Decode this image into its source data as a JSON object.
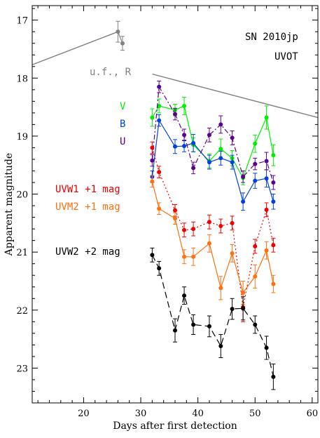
{
  "chart_data": {
    "type": "scatter",
    "title": "",
    "xlabel": "Days after first detection",
    "ylabel": "Apparent magnitude",
    "xlim": [
      11,
      61
    ],
    "ylim": [
      23.6,
      16.75
    ],
    "y_inverted": true,
    "grid": false,
    "x_ticks": [
      20,
      30,
      40,
      50,
      60
    ],
    "y_ticks": [
      17,
      18,
      19,
      20,
      21,
      22,
      23
    ],
    "annotations": [
      "SN 2010jp",
      "UVOT"
    ],
    "series": [
      {
        "name": "u.f., R",
        "color": "#808080",
        "line": "solid",
        "x": [
          26.0,
          26.8
        ],
        "y": [
          17.2,
          17.4
        ],
        "err": [
          0.18,
          0.12
        ],
        "fit_lines": [
          {
            "x": [
              11,
              26.0
            ],
            "y": [
              17.77,
              17.2
            ]
          },
          {
            "x": [
              32.0,
              61
            ],
            "y": [
              17.93,
              18.68
            ]
          }
        ]
      },
      {
        "name": "V",
        "color": "#00ee00",
        "line": "solid",
        "x": [
          32.0,
          33.2,
          36.0,
          37.6,
          39.2,
          42.0,
          44.0,
          46.0,
          47.9,
          50.0,
          52.0,
          53.2
        ],
        "y": [
          18.68,
          18.48,
          18.55,
          18.48,
          19.15,
          19.43,
          19.22,
          19.38,
          19.72,
          19.13,
          18.68,
          19.33
        ],
        "err": [
          0.15,
          0.12,
          0.1,
          0.15,
          0.12,
          0.12,
          0.17,
          0.13,
          0.12,
          0.15,
          0.2,
          0.18
        ]
      },
      {
        "name": "B",
        "color": "#0040e0",
        "line": "solid",
        "x": [
          32.0,
          33.2,
          36.0,
          37.6,
          39.2,
          42.0,
          44.0,
          46.0,
          47.9,
          50.0,
          52.0,
          53.2
        ],
        "y": [
          19.7,
          18.73,
          19.18,
          19.17,
          19.12,
          19.45,
          19.38,
          19.45,
          20.13,
          19.77,
          19.73,
          20.13
        ],
        "err": [
          0.1,
          0.1,
          0.12,
          0.1,
          0.15,
          0.12,
          0.12,
          0.12,
          0.15,
          0.13,
          0.15,
          0.13
        ]
      },
      {
        "name": "U",
        "color": "#5a0090",
        "line": "dashdot",
        "x": [
          32.0,
          33.2,
          36.0,
          37.6,
          39.2,
          42.0,
          44.0,
          46.0,
          47.9,
          50.0,
          52.0,
          53.2
        ],
        "y": [
          19.42,
          18.15,
          18.62,
          18.98,
          19.55,
          18.98,
          18.8,
          19.03,
          19.7,
          19.48,
          19.43,
          19.8
        ],
        "err": [
          0.1,
          0.1,
          0.1,
          0.1,
          0.1,
          0.12,
          0.15,
          0.12,
          0.1,
          0.1,
          0.15,
          0.12
        ]
      },
      {
        "name": "UVW1 +1 mag",
        "color": "#ee0000",
        "line": "dotted",
        "x": [
          32.0,
          33.2,
          36.0,
          37.6,
          39.2,
          42.0,
          44.0,
          46.0,
          47.9,
          50.0,
          52.0,
          53.2
        ],
        "y": [
          19.2,
          19.62,
          20.28,
          20.62,
          20.6,
          20.48,
          20.55,
          20.5,
          21.95,
          20.9,
          20.27,
          20.88
        ],
        "err": [
          0.1,
          0.1,
          0.1,
          0.12,
          0.12,
          0.12,
          0.12,
          0.12,
          0.25,
          0.12,
          0.12,
          0.12
        ]
      },
      {
        "name": "UVM2 +1 mag",
        "color": "#ff7010",
        "line": "solid",
        "x": [
          32.0,
          33.2,
          36.0,
          37.6,
          39.2,
          42.0,
          44.0,
          46.0,
          47.9,
          50.0,
          52.0,
          53.2
        ],
        "y": [
          19.78,
          20.25,
          20.42,
          21.08,
          21.08,
          20.85,
          21.62,
          21.02,
          21.7,
          21.42,
          20.97,
          21.55
        ],
        "err": [
          0.1,
          0.1,
          0.1,
          0.12,
          0.15,
          0.15,
          0.2,
          0.15,
          0.2,
          0.2,
          0.15,
          0.15
        ]
      },
      {
        "name": "UVW2 +2 mag",
        "color": "#000000",
        "line": "dashed",
        "x": [
          32.0,
          33.2,
          36.0,
          37.6,
          39.2,
          42.0,
          44.0,
          46.0,
          47.9,
          50.0,
          52.0,
          53.2
        ],
        "y": [
          21.05,
          21.28,
          22.35,
          21.75,
          22.25,
          22.28,
          22.62,
          21.98,
          21.97,
          22.25,
          22.65,
          23.15
        ],
        "err": [
          0.12,
          0.12,
          0.2,
          0.15,
          0.17,
          0.18,
          0.2,
          0.18,
          0.2,
          0.15,
          0.2,
          0.22
        ]
      }
    ]
  }
}
